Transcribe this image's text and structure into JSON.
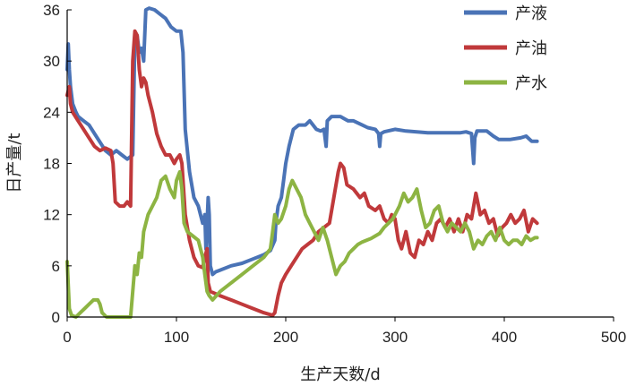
{
  "chart_data": {
    "type": "line",
    "xlabel": "生产天数/d",
    "ylabel": "日产量/t",
    "xlim": [
      0,
      500
    ],
    "ylim": [
      0,
      36
    ],
    "xticks": [
      "0",
      "100",
      "200",
      "300",
      "400",
      "500"
    ],
    "yticks": [
      "0",
      "6",
      "12",
      "18",
      "24",
      "30",
      "36"
    ],
    "grid": false,
    "legend_position": "top-right",
    "series": [
      {
        "name": "产液",
        "color": "#4a73b6",
        "points": [
          [
            0,
            29
          ],
          [
            1,
            32
          ],
          [
            2,
            29
          ],
          [
            3,
            27
          ],
          [
            5,
            25
          ],
          [
            8,
            24
          ],
          [
            10,
            23.5
          ],
          [
            15,
            23
          ],
          [
            20,
            22.5
          ],
          [
            25,
            21.5
          ],
          [
            30,
            20.5
          ],
          [
            35,
            19.5
          ],
          [
            40,
            19
          ],
          [
            45,
            19.5
          ],
          [
            50,
            19
          ],
          [
            55,
            18.5
          ],
          [
            60,
            19
          ],
          [
            62,
            33
          ],
          [
            64,
            33
          ],
          [
            66,
            31
          ],
          [
            68,
            31.5
          ],
          [
            70,
            30
          ],
          [
            72,
            36
          ],
          [
            75,
            36.2
          ],
          [
            80,
            36
          ],
          [
            85,
            35.5
          ],
          [
            90,
            35
          ],
          [
            95,
            34
          ],
          [
            100,
            33.5
          ],
          [
            104,
            33.5
          ],
          [
            106,
            31
          ],
          [
            108,
            22
          ],
          [
            112,
            17
          ],
          [
            116,
            14
          ],
          [
            120,
            13
          ],
          [
            124,
            11
          ],
          [
            126,
            12
          ],
          [
            127,
            8
          ],
          [
            128,
            11
          ],
          [
            129,
            14
          ],
          [
            130,
            12
          ],
          [
            131,
            6
          ],
          [
            133,
            5
          ],
          [
            136,
            5.3
          ],
          [
            140,
            5.5
          ],
          [
            150,
            6
          ],
          [
            160,
            6.3
          ],
          [
            170,
            6.8
          ],
          [
            180,
            7.3
          ],
          [
            186,
            7.8
          ],
          [
            190,
            9
          ],
          [
            191,
            11
          ],
          [
            193,
            13
          ],
          [
            196,
            14
          ],
          [
            198,
            16
          ],
          [
            200,
            18
          ],
          [
            203,
            20
          ],
          [
            207,
            22
          ],
          [
            212,
            22.5
          ],
          [
            218,
            22.5
          ],
          [
            222,
            23
          ],
          [
            228,
            22
          ],
          [
            232,
            21.8
          ],
          [
            235,
            22
          ],
          [
            237,
            20
          ],
          [
            238,
            23
          ],
          [
            242,
            23.5
          ],
          [
            250,
            23.5
          ],
          [
            257,
            23
          ],
          [
            262,
            23
          ],
          [
            270,
            22.5
          ],
          [
            275,
            22.2
          ],
          [
            282,
            22
          ],
          [
            285,
            21.5
          ],
          [
            286,
            20
          ],
          [
            287,
            21.5
          ],
          [
            290,
            21.7
          ],
          [
            300,
            22
          ],
          [
            310,
            21.8
          ],
          [
            320,
            21.7
          ],
          [
            330,
            21.6
          ],
          [
            340,
            21.6
          ],
          [
            350,
            21.6
          ],
          [
            360,
            21.6
          ],
          [
            365,
            21.7
          ],
          [
            370,
            21.5
          ],
          [
            372,
            18
          ],
          [
            373,
            21
          ],
          [
            375,
            21.8
          ],
          [
            380,
            21.8
          ],
          [
            384,
            21.8
          ],
          [
            390,
            21.2
          ],
          [
            395,
            20.8
          ],
          [
            405,
            20.8
          ],
          [
            415,
            21
          ],
          [
            420,
            21.2
          ],
          [
            425,
            20.6
          ],
          [
            430,
            20.6
          ]
        ]
      },
      {
        "name": "产油",
        "color": "#c0393b",
        "points": [
          [
            0,
            26
          ],
          [
            2,
            27
          ],
          [
            3,
            25
          ],
          [
            5,
            24
          ],
          [
            10,
            23
          ],
          [
            15,
            22
          ],
          [
            20,
            21
          ],
          [
            25,
            20
          ],
          [
            30,
            19.5
          ],
          [
            35,
            19.8
          ],
          [
            40,
            19.5
          ],
          [
            42,
            18
          ],
          [
            44,
            13.5
          ],
          [
            48,
            13
          ],
          [
            52,
            13
          ],
          [
            55,
            13.5
          ],
          [
            58,
            13
          ],
          [
            60,
            30
          ],
          [
            62,
            33.5
          ],
          [
            64,
            33
          ],
          [
            66,
            29
          ],
          [
            68,
            27
          ],
          [
            70,
            28
          ],
          [
            72,
            27.5
          ],
          [
            74,
            26
          ],
          [
            78,
            24
          ],
          [
            82,
            21.5
          ],
          [
            86,
            20
          ],
          [
            90,
            19
          ],
          [
            94,
            19
          ],
          [
            98,
            18
          ],
          [
            100,
            18.5
          ],
          [
            103,
            19
          ],
          [
            105,
            18
          ],
          [
            108,
            12
          ],
          [
            112,
            9
          ],
          [
            116,
            7
          ],
          [
            120,
            6
          ],
          [
            124,
            5.8
          ],
          [
            126,
            7
          ],
          [
            128,
            8
          ],
          [
            129,
            4
          ],
          [
            131,
            3
          ],
          [
            140,
            2.5
          ],
          [
            150,
            2
          ],
          [
            160,
            1.5
          ],
          [
            170,
            1
          ],
          [
            180,
            0.5
          ],
          [
            188,
            0.2
          ],
          [
            190,
            0.5
          ],
          [
            193,
            2.5
          ],
          [
            196,
            4
          ],
          [
            200,
            5
          ],
          [
            205,
            6
          ],
          [
            210,
            7
          ],
          [
            215,
            8
          ],
          [
            220,
            8.5
          ],
          [
            225,
            9
          ],
          [
            230,
            10
          ],
          [
            235,
            10.5
          ],
          [
            240,
            11
          ],
          [
            244,
            14
          ],
          [
            248,
            17
          ],
          [
            250,
            18
          ],
          [
            253,
            17.5
          ],
          [
            256,
            15.5
          ],
          [
            262,
            15
          ],
          [
            268,
            14
          ],
          [
            272,
            14.5
          ],
          [
            276,
            13
          ],
          [
            282,
            12.5
          ],
          [
            286,
            13
          ],
          [
            290,
            11.5
          ],
          [
            294,
            11
          ],
          [
            297,
            12
          ],
          [
            300,
            11.5
          ],
          [
            303,
            9
          ],
          [
            306,
            8
          ],
          [
            310,
            10
          ],
          [
            314,
            7.5
          ],
          [
            318,
            7
          ],
          [
            322,
            9
          ],
          [
            326,
            8.5
          ],
          [
            330,
            10
          ],
          [
            334,
            9
          ],
          [
            338,
            11
          ],
          [
            342,
            11.5
          ],
          [
            346,
            10.5
          ],
          [
            350,
            11.5
          ],
          [
            354,
            10
          ],
          [
            358,
            11.5
          ],
          [
            362,
            10
          ],
          [
            366,
            12
          ],
          [
            370,
            11.5
          ],
          [
            374,
            14.5
          ],
          [
            378,
            12
          ],
          [
            382,
            12.5
          ],
          [
            386,
            11
          ],
          [
            390,
            11.5
          ],
          [
            394,
            9.5
          ],
          [
            398,
            10.5
          ],
          [
            402,
            11
          ],
          [
            406,
            12
          ],
          [
            410,
            11
          ],
          [
            414,
            11.5
          ],
          [
            418,
            12.5
          ],
          [
            422,
            10
          ],
          [
            426,
            11.5
          ],
          [
            430,
            11
          ]
        ]
      },
      {
        "name": "产水",
        "color": "#8db443",
        "points": [
          [
            0,
            6.5
          ],
          [
            2,
            1
          ],
          [
            4,
            0.2
          ],
          [
            8,
            0
          ],
          [
            12,
            0.5
          ],
          [
            16,
            1
          ],
          [
            20,
            1.5
          ],
          [
            24,
            2
          ],
          [
            28,
            2
          ],
          [
            30,
            1.5
          ],
          [
            32,
            0.5
          ],
          [
            36,
            0
          ],
          [
            42,
            0
          ],
          [
            50,
            0
          ],
          [
            58,
            0
          ],
          [
            60,
            3
          ],
          [
            62,
            6
          ],
          [
            64,
            5
          ],
          [
            66,
            7.5
          ],
          [
            68,
            7
          ],
          [
            70,
            10
          ],
          [
            74,
            12
          ],
          [
            78,
            13
          ],
          [
            82,
            14
          ],
          [
            86,
            16
          ],
          [
            90,
            16.5
          ],
          [
            94,
            15
          ],
          [
            98,
            14
          ],
          [
            100,
            16
          ],
          [
            103,
            17
          ],
          [
            105,
            15
          ],
          [
            107,
            11
          ],
          [
            110,
            10
          ],
          [
            115,
            9.5
          ],
          [
            120,
            9
          ],
          [
            124,
            7
          ],
          [
            126,
            5
          ],
          [
            128,
            3
          ],
          [
            130,
            2.5
          ],
          [
            133,
            2
          ],
          [
            140,
            3
          ],
          [
            150,
            4
          ],
          [
            160,
            5
          ],
          [
            170,
            6
          ],
          [
            180,
            7
          ],
          [
            186,
            8
          ],
          [
            188,
            10
          ],
          [
            190,
            12
          ],
          [
            193,
            11
          ],
          [
            196,
            11.5
          ],
          [
            200,
            13
          ],
          [
            203,
            15
          ],
          [
            206,
            16
          ],
          [
            210,
            15
          ],
          [
            214,
            14
          ],
          [
            218,
            12
          ],
          [
            222,
            11
          ],
          [
            226,
            10
          ],
          [
            230,
            9
          ],
          [
            234,
            10.5
          ],
          [
            238,
            9
          ],
          [
            242,
            7
          ],
          [
            246,
            5
          ],
          [
            250,
            6
          ],
          [
            254,
            6.5
          ],
          [
            258,
            7.5
          ],
          [
            262,
            8
          ],
          [
            266,
            8.5
          ],
          [
            270,
            8.8
          ],
          [
            274,
            9
          ],
          [
            278,
            9.2
          ],
          [
            282,
            9.5
          ],
          [
            286,
            9.8
          ],
          [
            290,
            10.5
          ],
          [
            294,
            11
          ],
          [
            298,
            11.5
          ],
          [
            300,
            12
          ],
          [
            304,
            13
          ],
          [
            308,
            14.5
          ],
          [
            312,
            13.5
          ],
          [
            316,
            14
          ],
          [
            320,
            15
          ],
          [
            324,
            12.5
          ],
          [
            328,
            10.5
          ],
          [
            332,
            11
          ],
          [
            336,
            12.5
          ],
          [
            340,
            13
          ],
          [
            344,
            11
          ],
          [
            348,
            10
          ],
          [
            352,
            11
          ],
          [
            356,
            10.5
          ],
          [
            360,
            10
          ],
          [
            364,
            11
          ],
          [
            368,
            10
          ],
          [
            372,
            8
          ],
          [
            376,
            9
          ],
          [
            380,
            8.5
          ],
          [
            384,
            9.5
          ],
          [
            388,
            10
          ],
          [
            392,
            9
          ],
          [
            396,
            10.5
          ],
          [
            400,
            9
          ],
          [
            404,
            8.5
          ],
          [
            408,
            9
          ],
          [
            412,
            9
          ],
          [
            416,
            8.5
          ],
          [
            420,
            9.5
          ],
          [
            424,
            9
          ],
          [
            428,
            9.3
          ],
          [
            430,
            9.3
          ]
        ]
      }
    ]
  }
}
